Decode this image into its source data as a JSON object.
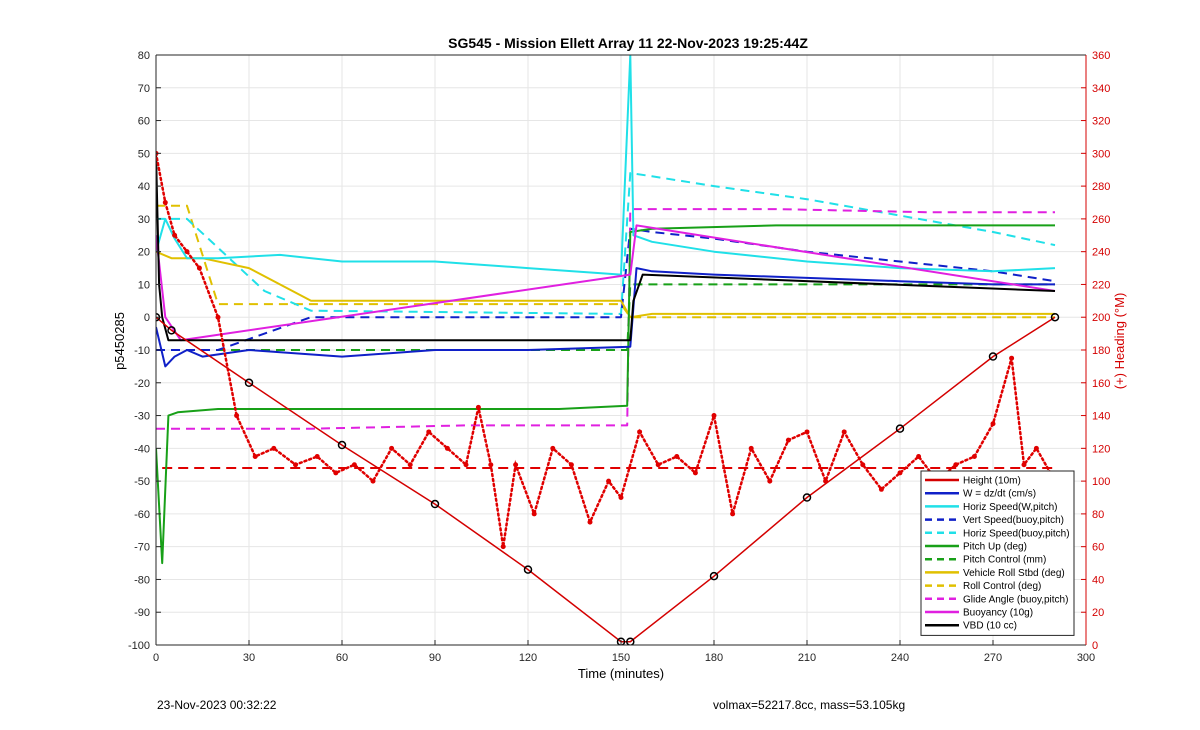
{
  "footer": {
    "left": "23-Nov-2023 00:32:22",
    "right": "volmax=52217.8cc, mass=53.105kg"
  },
  "colors": {
    "depth": "#d40000",
    "w": "#1020c8",
    "horiz": "#20e0e8",
    "pitch": "#18a018",
    "roll": "#e0c000",
    "glide": "#e020e0",
    "buoy": "#e020e0",
    "vbd": "#000000",
    "heading": "#e00000"
  },
  "chart_data": {
    "type": "line",
    "title": "SG545 - Mission Ellett Array 11 22-Nov-2023 19:25:44Z",
    "xlabel": "Time (minutes)",
    "ylabel": "p5450285",
    "y2label": "(+) Heading (°M)",
    "xlim": [
      0,
      300
    ],
    "ylim": [
      -100,
      80
    ],
    "y2lim": [
      0,
      360
    ],
    "xticks": [
      0,
      30,
      60,
      90,
      120,
      150,
      180,
      210,
      240,
      270,
      300
    ],
    "yticks": [
      -100,
      -90,
      -80,
      -70,
      -60,
      -50,
      -40,
      -30,
      -20,
      -10,
      0,
      10,
      20,
      30,
      40,
      50,
      60,
      70,
      80
    ],
    "y2ticks": [
      0,
      20,
      40,
      60,
      80,
      100,
      120,
      140,
      160,
      180,
      200,
      220,
      240,
      260,
      280,
      300,
      320,
      340,
      360
    ],
    "grid": true,
    "legend_position": "bottom-right",
    "legend": [
      {
        "label": "Height (10m)",
        "color": "#d40000",
        "dash": false
      },
      {
        "label": "W = dz/dt (cm/s)",
        "color": "#1020c8",
        "dash": false
      },
      {
        "label": "Horiz Speed(W,pitch)",
        "color": "#20e0e8",
        "dash": false
      },
      {
        "label": "Vert Speed(buoy,pitch)",
        "color": "#1020c8",
        "dash": true
      },
      {
        "label": "Horiz Speed(buoy,pitch)",
        "color": "#20e0e8",
        "dash": true
      },
      {
        "label": "Pitch Up (deg)",
        "color": "#18a018",
        "dash": false
      },
      {
        "label": "Pitch Control (mm)",
        "color": "#18a018",
        "dash": true
      },
      {
        "label": "Vehicle Roll Stbd (deg)",
        "color": "#e0c000",
        "dash": false
      },
      {
        "label": "Roll Control (deg)",
        "color": "#e0c000",
        "dash": true
      },
      {
        "label": "Glide Angle (buoy,pitch)",
        "color": "#e020e0",
        "dash": true
      },
      {
        "label": "Buoyancy (10g)",
        "color": "#e020e0",
        "dash": false
      },
      {
        "label": "VBD (10 cc)",
        "color": "#000000",
        "dash": false
      }
    ],
    "series": [
      {
        "name": "Height (10m)",
        "x": [
          0,
          5,
          30,
          60,
          90,
          120,
          150,
          153,
          180,
          210,
          240,
          270,
          290
        ],
        "y": [
          0,
          -4,
          -20,
          -39,
          -57,
          -77,
          -99,
          -99,
          -79,
          -55,
          -34,
          -12,
          0
        ]
      },
      {
        "name": "W = dz/dt (cm/s)",
        "x": [
          0,
          3,
          6,
          10,
          15,
          30,
          60,
          90,
          120,
          153,
          155,
          160,
          180,
          210,
          240,
          270,
          290
        ],
        "y": [
          -3,
          -15,
          -12,
          -10,
          -12,
          -10,
          -12,
          -10,
          -10,
          -9,
          15,
          14,
          13,
          12,
          11,
          10,
          10
        ]
      },
      {
        "name": "Horiz Speed(W,pitch)",
        "x": [
          0,
          3,
          6,
          10,
          20,
          40,
          60,
          90,
          120,
          150,
          153,
          154,
          160,
          180,
          210,
          240,
          270,
          290
        ],
        "y": [
          20,
          30,
          24,
          18,
          18,
          19,
          17,
          17,
          15,
          13,
          80,
          25,
          23,
          20,
          17,
          15,
          14,
          15
        ]
      },
      {
        "name": "Vert Speed(buoy,pitch)",
        "x": [
          0,
          20,
          50,
          60,
          150,
          153,
          160,
          180,
          210,
          240,
          270,
          290
        ],
        "y": [
          -10,
          -10,
          0,
          0,
          0,
          27,
          26,
          24,
          20,
          17,
          14,
          11
        ]
      },
      {
        "name": "Horiz Speed(buoy,pitch)",
        "x": [
          0,
          10,
          35,
          50,
          150,
          153,
          160,
          180,
          210,
          240,
          270,
          290
        ],
        "y": [
          30,
          30,
          8,
          2,
          1,
          44,
          43,
          40,
          36,
          31,
          26,
          22
        ]
      },
      {
        "name": "Pitch Up (deg)",
        "x": [
          0,
          2,
          4,
          7,
          20,
          60,
          100,
          130,
          152,
          153,
          160,
          200,
          250,
          290
        ],
        "y": [
          -40,
          -75,
          -30,
          -29,
          -28,
          -28,
          -28,
          -28,
          -27,
          26,
          27,
          28,
          28,
          28
        ]
      },
      {
        "name": "Pitch Control (mm)",
        "x": [
          0,
          152,
          153,
          290
        ],
        "y": [
          -10,
          -10,
          10,
          10
        ]
      },
      {
        "name": "Vehicle Roll Stbd (deg)",
        "x": [
          0,
          5,
          15,
          30,
          50,
          80,
          120,
          150,
          153,
          160,
          200,
          250,
          290
        ],
        "y": [
          20,
          18,
          18,
          15,
          5,
          5,
          5,
          5,
          0,
          1,
          1,
          1,
          1
        ]
      },
      {
        "name": "Roll Control (deg)",
        "x": [
          0,
          10,
          20,
          60,
          90,
          120,
          150,
          153,
          180,
          210,
          240,
          270,
          290
        ],
        "y": [
          34,
          34,
          4,
          4,
          4,
          4,
          4,
          0,
          0,
          0,
          0,
          0,
          0
        ]
      },
      {
        "name": "Glide Angle (buoy,pitch)",
        "x": [
          0,
          10,
          50,
          100,
          152,
          153,
          200,
          250,
          290
        ],
        "y": [
          -34,
          -34,
          -34,
          -33,
          -33,
          33,
          33,
          32,
          32
        ]
      },
      {
        "name": "Buoyancy (10g)",
        "x": [
          0,
          3,
          8,
          153,
          155,
          290
        ],
        "y": [
          25,
          0,
          -7,
          13,
          28,
          8
        ]
      },
      {
        "name": "VBD (10 cc)",
        "x": [
          0,
          1,
          2,
          4,
          153,
          154,
          157,
          290
        ],
        "y": [
          50,
          10,
          0,
          -7,
          -7,
          5,
          13,
          8
        ]
      },
      {
        "name": "Heading (°M)",
        "axis": "right",
        "x": [
          0,
          3,
          6,
          10,
          14,
          20,
          26,
          32,
          38,
          45,
          52,
          58,
          64,
          70,
          76,
          82,
          88,
          94,
          100,
          104,
          108,
          112,
          116,
          122,
          128,
          134,
          140,
          146,
          150,
          156,
          162,
          168,
          174,
          180,
          186,
          192,
          198,
          204,
          210,
          216,
          222,
          228,
          234,
          240,
          246,
          252,
          258,
          264,
          270,
          276,
          280,
          284,
          290
        ],
        "y": [
          300,
          270,
          250,
          240,
          230,
          200,
          140,
          115,
          120,
          110,
          115,
          105,
          110,
          100,
          120,
          110,
          130,
          120,
          110,
          145,
          110,
          60,
          110,
          80,
          120,
          110,
          75,
          100,
          90,
          130,
          110,
          115,
          105,
          140,
          80,
          120,
          100,
          125,
          130,
          100,
          130,
          110,
          95,
          105,
          115,
          100,
          110,
          115,
          135,
          175,
          110,
          120,
          100
        ]
      }
    ]
  }
}
